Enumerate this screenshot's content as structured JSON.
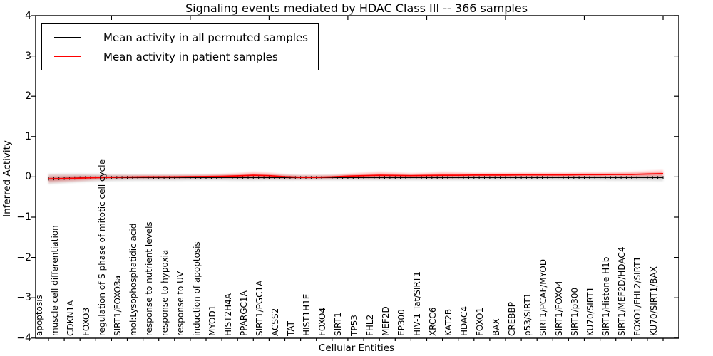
{
  "chart_data": {
    "type": "line",
    "title": "Signaling events mediated by HDAC Class III -- 366 samples",
    "xlabel": "Cellular Entities",
    "ylabel": "Inferred Activity",
    "ylim": [
      -4,
      4
    ],
    "y_tick_labels": [
      "4",
      "3",
      "2",
      "1",
      "0",
      "−1",
      "−2",
      "−3",
      "−4"
    ],
    "y_tick_values": [
      4,
      3,
      2,
      1,
      0,
      -1,
      -2,
      -3,
      -4
    ],
    "grid": false,
    "legend_position": "upper left",
    "categories": [
      "apoptosis",
      "muscle cell differentiation",
      "CDKN1A",
      "FOXO3",
      "regulation of S phase of mitotic cell cycle",
      "SIRT1/FOXO3a",
      "mol:Lysophosphatidic acid",
      "response to nutrient levels",
      "response to hypoxia",
      "response to UV",
      "induction of apoptosis",
      "MYOD1",
      "HIST2H4A",
      "PPARGC1A",
      "SIRT1/PGC1A",
      "ACSS2",
      "TAT",
      "HIST1H1E",
      "FOXO4",
      "SIRT1",
      "TP53",
      "FHL2",
      "MEF2D",
      "EP300",
      "HIV-1 Tat/SIRT1",
      "XRCC6",
      "KAT2B",
      "HDAC4",
      "FOXO1",
      "BAX",
      "CREBBP",
      "p53/SIRT1",
      "SIRT1/PCAF/MYOD",
      "SIRT1/FOXO4",
      "SIRT1/p300",
      "KU70/SIRT1",
      "SIRT1/Histone H1b",
      "SIRT1/MEF2D/HDAC4",
      "FOXO1/FHL2/SIRT1",
      "KU70/SIRT1/BAX"
    ],
    "series": [
      {
        "name": "Mean activity in all permuted samples",
        "color": "#000000",
        "band_color": "rgba(125,125,125,0.20)",
        "band_core_color": "rgba(125,125,125,0.32)",
        "marker": "vertical-tick",
        "values": [
          -0.05,
          -0.035,
          -0.025,
          -0.02,
          -0.02,
          -0.02,
          -0.02,
          -0.02,
          -0.02,
          -0.02,
          -0.02,
          -0.02,
          -0.02,
          -0.02,
          -0.02,
          -0.02,
          -0.02,
          -0.02,
          -0.02,
          -0.02,
          -0.02,
          -0.02,
          -0.02,
          -0.02,
          -0.02,
          -0.02,
          -0.02,
          -0.02,
          -0.02,
          -0.02,
          -0.02,
          -0.02,
          -0.02,
          -0.02,
          -0.02,
          -0.02,
          -0.02,
          -0.02,
          -0.02,
          -0.02
        ],
        "band_halfwidth": [
          0.13,
          0.12,
          0.11,
          0.1,
          0.09,
          0.085,
          0.08,
          0.08,
          0.08,
          0.075,
          0.075,
          0.075,
          0.08,
          0.08,
          0.075,
          0.075,
          0.07,
          0.07,
          0.07,
          0.07,
          0.07,
          0.07,
          0.07,
          0.07,
          0.07,
          0.07,
          0.07,
          0.07,
          0.07,
          0.07,
          0.07,
          0.07,
          0.07,
          0.07,
          0.075,
          0.075,
          0.08,
          0.08,
          0.085,
          0.09
        ]
      },
      {
        "name": "Mean activity in patient samples",
        "color": "#ff0000",
        "band_color": "rgba(255,0,0,0.16)",
        "band_core_color": "rgba(255,0,0,0.30)",
        "marker": "none",
        "values": [
          -0.05,
          -0.04,
          -0.03,
          -0.02,
          -0.01,
          -0.005,
          0,
          0,
          0,
          0.005,
          0.01,
          0.015,
          0.025,
          0.04,
          0.03,
          0.005,
          -0.01,
          -0.01,
          0,
          0.02,
          0.03,
          0.04,
          0.035,
          0.03,
          0.035,
          0.04,
          0.04,
          0.045,
          0.045,
          0.045,
          0.05,
          0.05,
          0.05,
          0.05,
          0.055,
          0.055,
          0.06,
          0.06,
          0.07,
          0.08
        ],
        "band_halfwidth": [
          0.1,
          0.09,
          0.08,
          0.06,
          0.05,
          0.05,
          0.05,
          0.05,
          0.05,
          0.05,
          0.05,
          0.06,
          0.07,
          0.09,
          0.08,
          0.06,
          0.05,
          0.05,
          0.05,
          0.06,
          0.08,
          0.09,
          0.08,
          0.06,
          0.07,
          0.09,
          0.08,
          0.06,
          0.06,
          0.06,
          0.06,
          0.06,
          0.06,
          0.06,
          0.06,
          0.06,
          0.06,
          0.07,
          0.08,
          0.09
        ]
      }
    ]
  }
}
